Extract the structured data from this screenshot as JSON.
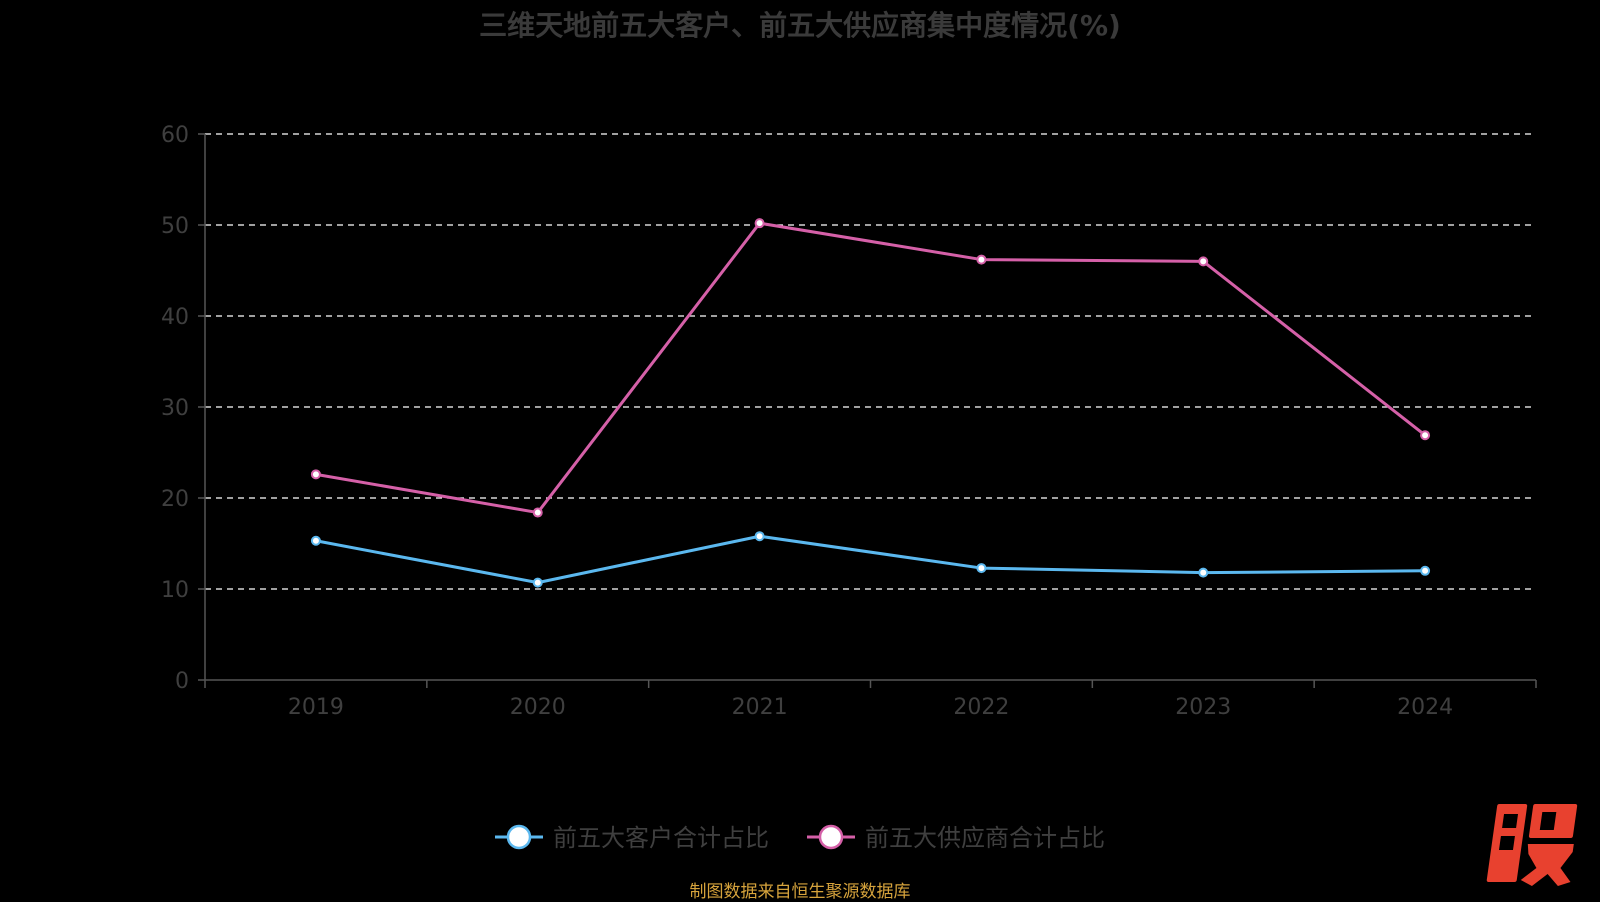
{
  "chart_data": {
    "type": "line",
    "title": "三维天地前五大客户、前五大供应商集中度情况(%)",
    "categories": [
      "2019",
      "2020",
      "2021",
      "2022",
      "2023",
      "2024"
    ],
    "series": [
      {
        "name": "前五大客户合计占比",
        "color": "#5bb8ef",
        "values": [
          15.3,
          10.7,
          15.8,
          12.3,
          11.8,
          12.0
        ]
      },
      {
        "name": "前五大供应商合计占比",
        "color": "#d560a8",
        "values": [
          22.6,
          18.4,
          50.2,
          46.2,
          46.0,
          26.9
        ]
      }
    ],
    "y_ticks": [
      "0",
      "10",
      "20",
      "30",
      "40",
      "50",
      "60"
    ],
    "ylim": [
      0,
      60
    ],
    "grid": true,
    "legend_position": "bottom"
  },
  "source_note": "制图数据来自恒生聚源数据库",
  "logo_text": "股",
  "colors": {
    "background": "#000000",
    "grid": "#ffffff",
    "axis": "#555555",
    "logo": "#e8412f",
    "source": "#d6a33c"
  }
}
